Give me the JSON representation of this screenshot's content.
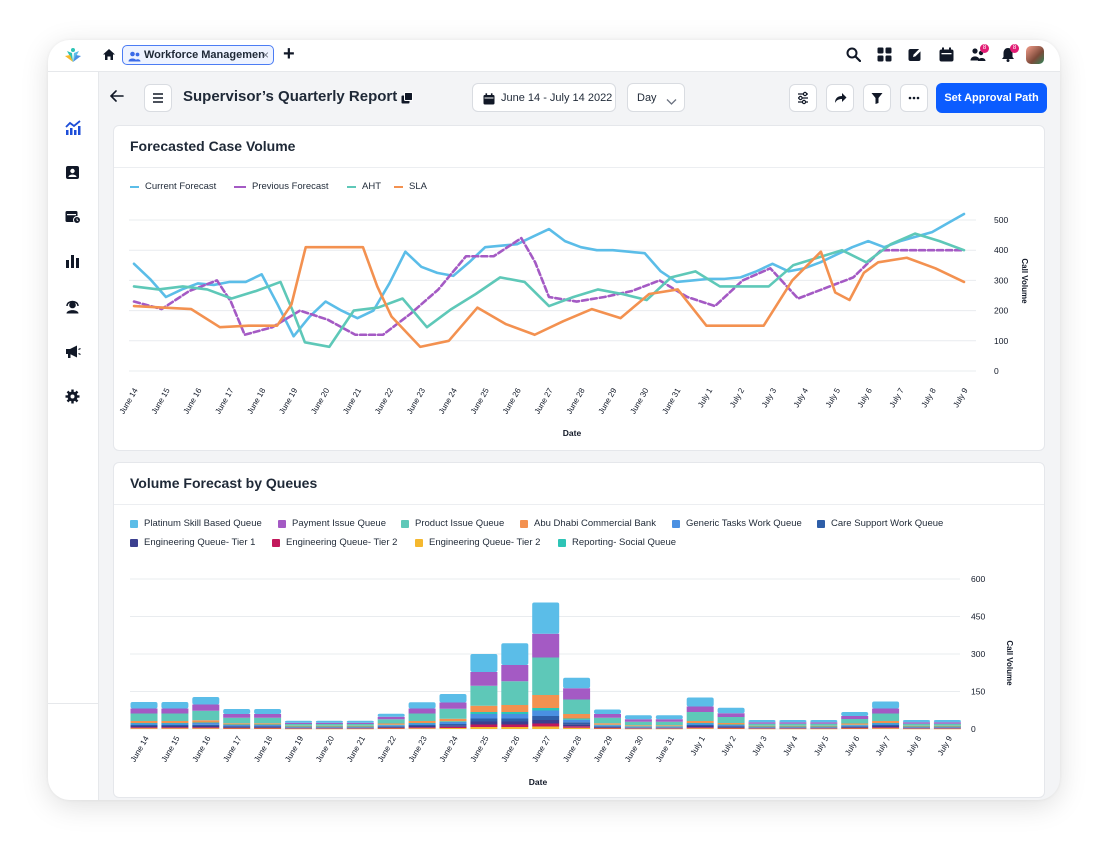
{
  "topbar": {
    "tab_label": "Workforce Management",
    "tab_close": "×",
    "new_tab": "+",
    "badge_a": "8",
    "badge_b": "8"
  },
  "header": {
    "title": "Supervisor’s Quarterly Report",
    "date_range": "June 14 - July 14 2022",
    "granularity": "Day",
    "approval_button": "Set Approval Path"
  },
  "colors": {
    "primary": "#0b5cff",
    "current_forecast": "#5bbde8",
    "previous_forecast": "#a45ac4",
    "aht": "#5ec8b8",
    "sla": "#f39150"
  },
  "chart_data": [
    {
      "type": "line",
      "title": "Forecasted Case Volume",
      "xlabel": "Date",
      "ylabel": "Call Volume",
      "ylim": [
        0,
        500
      ],
      "yticks": [
        0,
        100,
        200,
        300,
        400,
        500
      ],
      "x": [
        "June 14",
        "June 15",
        "June 16",
        "June 17",
        "June 18",
        "June 19",
        "June 20",
        "June 21",
        "June 22",
        "June 23",
        "June 24",
        "June 25",
        "June 26",
        "June 27",
        "June 28",
        "June 29",
        "June 30",
        "June 31",
        "July 1",
        "July 2",
        "July 3",
        "July 4",
        "July 5",
        "July 6",
        "July 7",
        "July 8",
        "July 9"
      ],
      "series": [
        {
          "name": "Current Forecast",
          "style": "solid",
          "color": "#5bbde8",
          "points": [
            [
              0,
              355
            ],
            [
              0.5,
              305
            ],
            [
              1,
              245
            ],
            [
              1.5,
              270
            ],
            [
              2,
              290
            ],
            [
              2.5,
              285
            ],
            [
              3,
              295
            ],
            [
              3.5,
              295
            ],
            [
              4,
              320
            ],
            [
              4.5,
              220
            ],
            [
              5,
              115
            ],
            [
              5.5,
              180
            ],
            [
              6,
              230
            ],
            [
              6.5,
              200
            ],
            [
              7,
              175
            ],
            [
              7.5,
              200
            ],
            [
              8,
              290
            ],
            [
              8.5,
              395
            ],
            [
              9,
              345
            ],
            [
              9.5,
              325
            ],
            [
              10,
              315
            ],
            [
              10.5,
              360
            ],
            [
              11,
              410
            ],
            [
              11.5,
              415
            ],
            [
              12,
              420
            ],
            [
              12.5,
              445
            ],
            [
              13,
              470
            ],
            [
              13.5,
              430
            ],
            [
              14,
              410
            ],
            [
              14.5,
              400
            ],
            [
              15,
              400
            ],
            [
              15.5,
              395
            ],
            [
              16,
              390
            ],
            [
              16.5,
              330
            ],
            [
              17,
              295
            ],
            [
              17.5,
              300
            ],
            [
              18,
              305
            ],
            [
              18.5,
              305
            ],
            [
              19,
              310
            ],
            [
              19.5,
              330
            ],
            [
              20,
              355
            ],
            [
              20.5,
              330
            ],
            [
              21,
              340
            ],
            [
              21.5,
              360
            ],
            [
              22,
              385
            ],
            [
              22.5,
              410
            ],
            [
              23,
              430
            ],
            [
              23.5,
              410
            ],
            [
              24,
              430
            ],
            [
              24.5,
              445
            ],
            [
              25,
              460
            ],
            [
              25.5,
              490
            ],
            [
              26,
              520
            ]
          ]
        },
        {
          "name": "Previous Forecast",
          "style": "dashed",
          "color": "#a45ac4",
          "points": [
            [
              0,
              230
            ],
            [
              1,
              205
            ],
            [
              2,
              265
            ],
            [
              3,
              300
            ],
            [
              3.5,
              230
            ],
            [
              4,
              120
            ],
            [
              5,
              145
            ],
            [
              6,
              200
            ],
            [
              7,
              170
            ],
            [
              8,
              120
            ],
            [
              9,
              120
            ],
            [
              10,
              190
            ],
            [
              11,
              270
            ],
            [
              12,
              380
            ],
            [
              13,
              380
            ],
            [
              14,
              440
            ],
            [
              14.5,
              360
            ],
            [
              15,
              245
            ],
            [
              16,
              230
            ],
            [
              17,
              245
            ],
            [
              18,
              265
            ],
            [
              19,
              300
            ],
            [
              20,
              245
            ],
            [
              21,
              215
            ],
            [
              22,
              300
            ],
            [
              23,
              340
            ],
            [
              24,
              240
            ],
            [
              25,
              275
            ],
            [
              26,
              310
            ],
            [
              27,
              400
            ],
            [
              28,
              400
            ],
            [
              29,
              400
            ],
            [
              30,
              400
            ]
          ]
        },
        {
          "name": "AHT",
          "style": "solid",
          "color": "#5ec8b8",
          "points": [
            [
              0,
              280
            ],
            [
              1,
              270
            ],
            [
              2,
              280
            ],
            [
              3,
              270
            ],
            [
              4,
              240
            ],
            [
              5,
              265
            ],
            [
              6,
              295
            ],
            [
              6.5,
              200
            ],
            [
              7,
              95
            ],
            [
              8,
              80
            ],
            [
              9,
              200
            ],
            [
              10,
              210
            ],
            [
              11,
              240
            ],
            [
              12,
              145
            ],
            [
              13,
              205
            ],
            [
              14,
              255
            ],
            [
              15,
              310
            ],
            [
              16,
              295
            ],
            [
              17,
              215
            ],
            [
              18,
              245
            ],
            [
              19,
              270
            ],
            [
              20,
              255
            ],
            [
              21,
              235
            ],
            [
              22,
              310
            ],
            [
              23,
              330
            ],
            [
              24,
              280
            ],
            [
              25,
              280
            ],
            [
              26,
              280
            ],
            [
              27,
              350
            ],
            [
              28,
              375
            ],
            [
              29,
              400
            ],
            [
              30,
              360
            ],
            [
              31,
              420
            ],
            [
              32,
              455
            ],
            [
              33,
              430
            ],
            [
              34,
              400
            ]
          ]
        },
        {
          "name": "SLA",
          "style": "solid",
          "color": "#f39150",
          "points": [
            [
              0,
              215
            ],
            [
              1,
              210
            ],
            [
              2,
              205
            ],
            [
              3,
              145
            ],
            [
              4,
              150
            ],
            [
              5,
              150
            ],
            [
              5.5,
              220
            ],
            [
              6,
              410
            ],
            [
              7,
              410
            ],
            [
              8,
              410
            ],
            [
              8.5,
              280
            ],
            [
              9,
              180
            ],
            [
              10,
              80
            ],
            [
              11,
              100
            ],
            [
              12,
              210
            ],
            [
              13,
              155
            ],
            [
              14,
              120
            ],
            [
              15,
              165
            ],
            [
              16,
              205
            ],
            [
              17,
              175
            ],
            [
              18,
              255
            ],
            [
              19,
              270
            ],
            [
              20,
              150
            ],
            [
              21,
              150
            ],
            [
              22,
              150
            ],
            [
              23,
              300
            ],
            [
              24,
              395
            ],
            [
              24.5,
              260
            ],
            [
              25,
              235
            ],
            [
              25.5,
              325
            ],
            [
              26,
              360
            ],
            [
              27,
              375
            ],
            [
              28,
              340
            ],
            [
              29,
              295
            ]
          ]
        }
      ]
    },
    {
      "type": "bar",
      "stacked": true,
      "title": "Volume Forecast by Queues",
      "xlabel": "Date",
      "ylabel": "Call Volume",
      "ylim": [
        0,
        600
      ],
      "yticks": [
        0,
        150,
        300,
        450,
        600
      ],
      "categories": [
        "June 14",
        "June 15",
        "June 16",
        "June 17",
        "June 18",
        "June 19",
        "June 20",
        "June 21",
        "June 22",
        "June 23",
        "June 24",
        "June 25",
        "June 26",
        "June 27",
        "June 28",
        "June 29",
        "June 30",
        "June 31",
        "July 1",
        "July 2",
        "July 3",
        "July 4",
        "July 5",
        "July 6",
        "July 7",
        "July 8",
        "July 9"
      ],
      "legend": [
        {
          "name": "Platinum Skill Based Queue",
          "color": "#5bbde8"
        },
        {
          "name": "Payment Issue Queue",
          "color": "#a45ac4"
        },
        {
          "name": "Product Issue Queue",
          "color": "#5ec8b8"
        },
        {
          "name": "Abu Dhabi Commercial Bank",
          "color": "#f39150"
        },
        {
          "name": "Generic Tasks Work Queue",
          "color": "#4a90e2"
        },
        {
          "name": "Care Support Work Queue",
          "color": "#2e5ea8"
        },
        {
          "name": "Engineering Queue- Tier 1",
          "color": "#3b3f8f"
        },
        {
          "name": "Engineering Queue- Tier 2",
          "color": "#c2185b"
        },
        {
          "name": "Engineering Queue- Tier 2",
          "color": "#f5b82e"
        },
        {
          "name": "Reporting- Social Queue",
          "color": "#2ec4b6"
        }
      ],
      "series": [
        {
          "name": "Engineering Queue- Tier 2",
          "color": "#f5b82e",
          "values": [
            3,
            3,
            3,
            2,
            2,
            1,
            1,
            1,
            2,
            3,
            4,
            8,
            8,
            10,
            5,
            2,
            1,
            1,
            3,
            2,
            1,
            1,
            1,
            2,
            3,
            1,
            1
          ]
        },
        {
          "name": "Engineering Queue- Tier 2",
          "color": "#c2185b",
          "values": [
            4,
            4,
            4,
            3,
            3,
            2,
            2,
            2,
            3,
            4,
            5,
            10,
            10,
            12,
            6,
            3,
            2,
            2,
            4,
            3,
            2,
            2,
            2,
            3,
            4,
            2,
            2
          ]
        },
        {
          "name": "Engineering Queue- Tier 1",
          "color": "#3b3f8f",
          "values": [
            5,
            5,
            5,
            4,
            4,
            2,
            2,
            2,
            3,
            5,
            6,
            12,
            12,
            14,
            8,
            3,
            2,
            2,
            5,
            4,
            2,
            2,
            2,
            3,
            5,
            2,
            2
          ]
        },
        {
          "name": "Care Support Work Queue",
          "color": "#2e5ea8",
          "values": [
            4,
            4,
            5,
            3,
            3,
            2,
            2,
            2,
            3,
            4,
            5,
            12,
            12,
            16,
            8,
            3,
            2,
            2,
            4,
            3,
            2,
            2,
            2,
            3,
            4,
            2,
            2
          ]
        },
        {
          "name": "Generic Tasks Work Queue",
          "color": "#4a90e2",
          "values": [
            6,
            6,
            7,
            4,
            4,
            2,
            2,
            2,
            4,
            6,
            8,
            18,
            18,
            22,
            10,
            4,
            3,
            3,
            6,
            4,
            2,
            2,
            2,
            4,
            6,
            2,
            2
          ]
        },
        {
          "name": "Reporting- Social Queue",
          "color": "#2ec4b6",
          "values": [
            2,
            2,
            2,
            2,
            2,
            1,
            1,
            1,
            2,
            2,
            3,
            8,
            8,
            10,
            5,
            2,
            1,
            1,
            2,
            2,
            1,
            1,
            1,
            2,
            2,
            1,
            1
          ]
        },
        {
          "name": "Abu Dhabi Commercial Bank",
          "color": "#f39150",
          "values": [
            8,
            8,
            9,
            5,
            5,
            3,
            3,
            3,
            5,
            8,
            10,
            25,
            28,
            52,
            18,
            6,
            4,
            4,
            8,
            6,
            3,
            3,
            3,
            5,
            8,
            3,
            3
          ]
        },
        {
          "name": "Product Issue Queue",
          "color": "#5ec8b8",
          "values": [
            30,
            30,
            38,
            22,
            22,
            7,
            7,
            7,
            17,
            30,
            40,
            80,
            95,
            150,
            58,
            22,
            14,
            14,
            36,
            24,
            8,
            8,
            8,
            18,
            30,
            8,
            8
          ]
        },
        {
          "name": "Payment Issue Queue",
          "color": "#a45ac4",
          "values": [
            20,
            20,
            25,
            15,
            15,
            5,
            5,
            5,
            10,
            20,
            25,
            55,
            65,
            95,
            45,
            15,
            10,
            10,
            22,
            15,
            6,
            6,
            6,
            12,
            20,
            6,
            6
          ]
        },
        {
          "name": "Platinum Skill Based Queue",
          "color": "#5bbde8",
          "values": [
            26,
            26,
            30,
            20,
            20,
            8,
            8,
            8,
            12,
            25,
            34,
            72,
            87,
            125,
            42,
            18,
            16,
            16,
            36,
            22,
            9,
            9,
            9,
            16,
            28,
            9,
            9
          ]
        }
      ]
    }
  ]
}
